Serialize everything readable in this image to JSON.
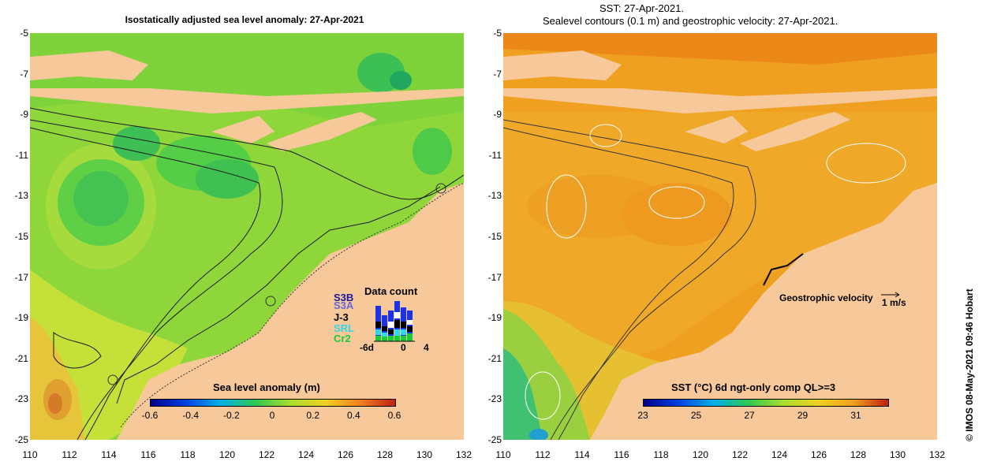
{
  "titles": {
    "left": "Isostatically adjusted sea level anomaly: 27-Apr-2021",
    "right_line1": "SST: 27-Apr-2021.",
    "right_line2": "Sealevel contours (0.1 m) and geostrophic velocity: 27-Apr-2021."
  },
  "axes": {
    "yticks": [
      "-5",
      "-7",
      "-9",
      "-11",
      "-13",
      "-15",
      "-17",
      "-19",
      "-21",
      "-23",
      "-25"
    ],
    "xticks": [
      "110",
      "112",
      "114",
      "116",
      "118",
      "120",
      "122",
      "124",
      "126",
      "128",
      "130",
      "132"
    ]
  },
  "left_map": {
    "colorbar": {
      "title": "Sea level anomaly (m)",
      "ticks": [
        "-0.6",
        "-0.4",
        "-0.2",
        "0",
        "0.2",
        "0.4",
        "0.6"
      ]
    },
    "data_count": {
      "title": "Data count",
      "satellites": [
        "S3B",
        "S3A",
        "J-3",
        "SRL",
        "Cr2"
      ],
      "xticks": [
        "-6d",
        "0",
        "4"
      ]
    }
  },
  "right_map": {
    "colorbar": {
      "title": "SST (°C) 6d ngt-only comp QL>=3",
      "ticks": [
        "23",
        "25",
        "27",
        "29",
        "31"
      ]
    },
    "velocity_legend": {
      "label": "Geostrophic velocity",
      "unit": "1 m/s"
    }
  },
  "credit": "© IMOS 08-May-2021 09:46 Hobart"
}
